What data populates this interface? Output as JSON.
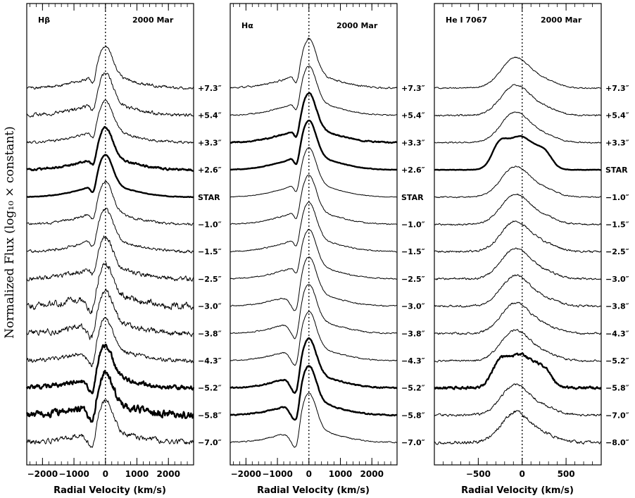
{
  "figure": {
    "ylabel": "Normalized Flux (log₁₀ × constant)"
  },
  "chart_data": [
    {
      "type": "line",
      "title": "Hβ",
      "epoch": "2000 Mar",
      "xlabel": "Radial Velocity (km/s)",
      "ylabel": "Normalized Flux (log₁₀ × constant)",
      "xlim": [
        -2500,
        2800
      ],
      "xticks": [
        -2000,
        -1000,
        0,
        1000,
        2000
      ],
      "xtick_labels": [
        "−2000",
        "−1000",
        "0",
        "1000",
        "2000"
      ],
      "reference_line_x": 0,
      "series": [
        {
          "name": "+7.3″",
          "noise": 0.06,
          "thick": false
        },
        {
          "name": "+5.4″",
          "noise": 0.07,
          "thick": false
        },
        {
          "name": "+3.3″",
          "noise": 0.05,
          "thick": false
        },
        {
          "name": "+2.6″",
          "noise": 0.04,
          "thick": true
        },
        {
          "name": "STAR",
          "noise": 0.01,
          "thick": true
        },
        {
          "name": "−1.0″",
          "noise": 0.05,
          "thick": false
        },
        {
          "name": "−1.5″",
          "noise": 0.06,
          "thick": false
        },
        {
          "name": "−2.5″",
          "noise": 0.09,
          "thick": false
        },
        {
          "name": "−3.0″",
          "noise": 0.14,
          "thick": false
        },
        {
          "name": "−3.8″",
          "noise": 0.12,
          "thick": false
        },
        {
          "name": "−4.3″",
          "noise": 0.09,
          "thick": false
        },
        {
          "name": "−5.2″",
          "noise": 0.09,
          "thick": true
        },
        {
          "name": "−5.8″",
          "noise": 0.14,
          "thick": true
        },
        {
          "name": "−7.0″",
          "noise": 0.1,
          "thick": false
        }
      ]
    },
    {
      "type": "line",
      "title": "Hα",
      "epoch": "2000 Mar",
      "xlabel": "Radial Velocity (km/s)",
      "ylabel": "Normalized Flux (log₁₀ × constant)",
      "xlim": [
        -2500,
        2800
      ],
      "xticks": [
        -2000,
        -1000,
        0,
        1000,
        2000
      ],
      "xtick_labels": [
        "−2000",
        "−1000",
        "0",
        "1000",
        "2000"
      ],
      "reference_line_x": 0,
      "series": [
        {
          "name": "+7.3″",
          "noise": 0.03,
          "thick": false
        },
        {
          "name": "+5.4″",
          "noise": 0.02,
          "thick": false
        },
        {
          "name": "+3.3″",
          "noise": 0.02,
          "thick": true
        },
        {
          "name": "+2.6″",
          "noise": 0.01,
          "thick": true
        },
        {
          "name": "STAR",
          "noise": 0.01,
          "thick": false
        },
        {
          "name": "−1.0″",
          "noise": 0.02,
          "thick": false
        },
        {
          "name": "−1.5″",
          "noise": 0.02,
          "thick": false
        },
        {
          "name": "−2.5″",
          "noise": 0.02,
          "thick": false
        },
        {
          "name": "−3.0″",
          "noise": 0.02,
          "thick": false
        },
        {
          "name": "−3.8″",
          "noise": 0.02,
          "thick": false
        },
        {
          "name": "−4.3″",
          "noise": 0.02,
          "thick": false
        },
        {
          "name": "−5.2″",
          "noise": 0.02,
          "thick": true
        },
        {
          "name": "−5.8″",
          "noise": 0.02,
          "thick": true
        },
        {
          "name": "−7.0″",
          "noise": 0.02,
          "thick": false
        }
      ]
    },
    {
      "type": "line",
      "title": "He I 7067",
      "epoch": "2000 Mar",
      "xlabel": "Radial Velocity (km/s)",
      "ylabel": "Normalized Flux (log₁₀ × constant)",
      "xlim": [
        -1000,
        900
      ],
      "xticks": [
        -500,
        0,
        500
      ],
      "xtick_labels": [
        "−500",
        "0",
        "500"
      ],
      "reference_line_x": 0,
      "series": [
        {
          "name": "+7.3″",
          "noise": 0.03,
          "thick": false
        },
        {
          "name": "+5.4″",
          "noise": 0.04,
          "thick": false
        },
        {
          "name": "+3.3″",
          "noise": 0.03,
          "thick": false
        },
        {
          "name": "STAR",
          "noise": 0.01,
          "thick": true
        },
        {
          "name": "−1.0″",
          "noise": 0.03,
          "thick": false
        },
        {
          "name": "−1.5″",
          "noise": 0.04,
          "thick": false
        },
        {
          "name": "−2.5″",
          "noise": 0.05,
          "thick": false
        },
        {
          "name": "−3.0″",
          "noise": 0.05,
          "thick": false
        },
        {
          "name": "−3.8″",
          "noise": 0.05,
          "thick": false
        },
        {
          "name": "−4.3″",
          "noise": 0.05,
          "thick": false
        },
        {
          "name": "−5.2″",
          "noise": 0.05,
          "thick": false
        },
        {
          "name": "−5.8″",
          "noise": 0.06,
          "thick": true
        },
        {
          "name": "−7.0″",
          "noise": 0.06,
          "thick": false
        },
        {
          "name": "−8.0″",
          "noise": 0.08,
          "thick": false
        }
      ]
    }
  ]
}
